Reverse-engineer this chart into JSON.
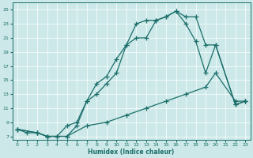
{
  "xlabel": "Humidex (Indice chaleur)",
  "bg_color": "#cce8e8",
  "line_color": "#1a6e6a",
  "xlim": [
    -0.5,
    23.5
  ],
  "ylim": [
    6.5,
    26
  ],
  "xticks": [
    0,
    1,
    2,
    3,
    4,
    5,
    6,
    7,
    8,
    9,
    10,
    11,
    12,
    13,
    14,
    15,
    16,
    17,
    18,
    19,
    20,
    21,
    22,
    23
  ],
  "yticks": [
    7,
    9,
    11,
    13,
    15,
    17,
    19,
    21,
    23,
    25
  ],
  "curve1_x": [
    0,
    1,
    2,
    3,
    4,
    5,
    6,
    7,
    8,
    9,
    10,
    11,
    12,
    13,
    14,
    15,
    16,
    17,
    18,
    19,
    20,
    22,
    23
  ],
  "curve1_y": [
    8,
    7.5,
    7.5,
    7,
    7,
    7,
    8.5,
    12,
    14.5,
    15.5,
    18,
    20,
    21,
    21,
    23.5,
    24,
    24.8,
    24,
    24,
    20,
    20,
    11.5,
    12
  ],
  "curve2_x": [
    0,
    2,
    3,
    4,
    5,
    6,
    7,
    8,
    9,
    10,
    11,
    12,
    13,
    14,
    15,
    16,
    17,
    18,
    19,
    20,
    22,
    23
  ],
  "curve2_y": [
    8,
    7.5,
    7,
    7,
    8.5,
    9,
    12,
    13,
    14.5,
    16,
    20,
    23,
    23.5,
    23.5,
    24,
    24.8,
    23,
    20.5,
    16,
    20,
    11.5,
    12
  ],
  "curve3_x": [
    0,
    2,
    3,
    5,
    7,
    9,
    11,
    13,
    15,
    17,
    19,
    20,
    22,
    23
  ],
  "curve3_y": [
    8,
    7.5,
    7,
    7,
    8.5,
    9,
    10,
    11,
    12,
    13,
    14,
    16,
    12,
    12
  ]
}
